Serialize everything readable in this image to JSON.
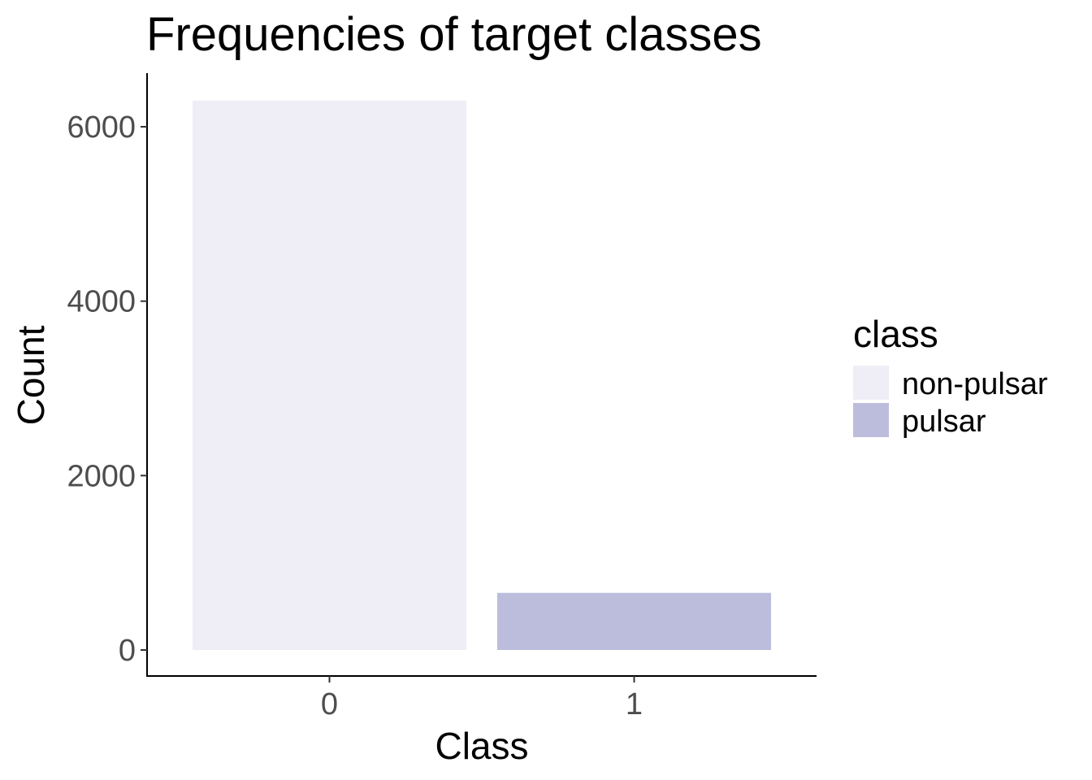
{
  "chart_data": {
    "type": "bar",
    "title": "Frequencies of target classes",
    "xlabel": "Class",
    "ylabel": "Count",
    "categories": [
      "0",
      "1"
    ],
    "values": [
      6300,
      655
    ],
    "fill_key": [
      "non-pulsar",
      "pulsar"
    ],
    "ylim": [
      0,
      6600
    ],
    "yticks": [
      0,
      2000,
      4000,
      6000
    ],
    "ytick_labels": [
      "0",
      "2000",
      "4000",
      "6000"
    ],
    "grid": false,
    "legend": {
      "title": "class",
      "position": "right",
      "entries": [
        {
          "label": "non-pulsar",
          "color": "#efedf5"
        },
        {
          "label": "pulsar",
          "color": "#bcbddc"
        }
      ]
    },
    "colors": {
      "non-pulsar": "#efedf5",
      "pulsar": "#bcbddc"
    }
  }
}
